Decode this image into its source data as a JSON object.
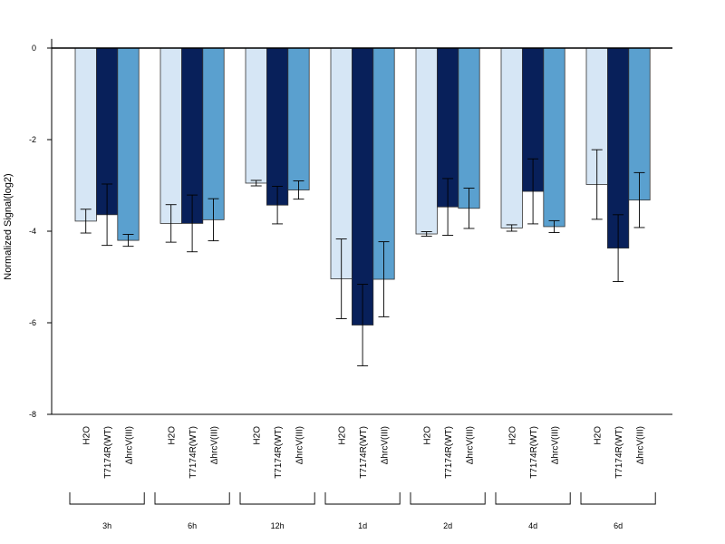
{
  "chart_data": {
    "type": "bar",
    "ylabel": "Normalized Signal(log2)",
    "ylim": [
      -8,
      0
    ],
    "yticks": [
      0,
      -2,
      -4,
      -6,
      -8
    ],
    "groups": [
      "3h",
      "6h",
      "12h",
      "1d",
      "2d",
      "4d",
      "6d"
    ],
    "treatments": [
      "H2O",
      "T7174R(WT)",
      "ΔhrcV(III)"
    ],
    "series": [
      {
        "name": "H2O",
        "color": "#d6e6f5",
        "values": [
          -3.78,
          -3.83,
          -2.95,
          -5.04,
          -4.06,
          -3.93,
          -2.98
        ],
        "error": [
          0.26,
          0.41,
          0.06,
          0.87,
          0.05,
          0.07,
          0.76
        ]
      },
      {
        "name": "T7174R(WT)",
        "color": "#08205a",
        "values": [
          -3.64,
          -3.83,
          -3.43,
          -6.05,
          -3.47,
          -3.13,
          -4.37
        ],
        "error": [
          0.67,
          0.62,
          0.41,
          0.89,
          0.62,
          0.71,
          0.73
        ]
      },
      {
        "name": "ΔhrcV(III)",
        "color": "#5aa0cf",
        "values": [
          -4.2,
          -3.75,
          -3.1,
          -5.05,
          -3.5,
          -3.9,
          -3.32
        ],
        "error": [
          0.13,
          0.46,
          0.2,
          0.82,
          0.44,
          0.13,
          0.6
        ]
      }
    ]
  }
}
